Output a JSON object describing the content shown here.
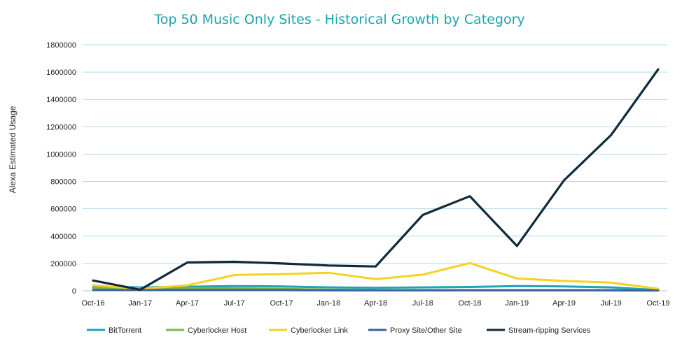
{
  "chart_data": {
    "type": "line",
    "title": "Top 50 Music Only Sites - Historical Growth by Category",
    "xlabel": "",
    "ylabel": "Alexa Estimated Usage",
    "ylim": [
      0,
      1800000
    ],
    "yticks": [
      0,
      200000,
      400000,
      600000,
      800000,
      1000000,
      1200000,
      1400000,
      1600000,
      1800000
    ],
    "grid": true,
    "legend_position": "bottom",
    "categories": [
      "Oct-16",
      "Jan-17",
      "Apr-17",
      "Jul-17",
      "Oct-17",
      "Jan-18",
      "Apr-18",
      "Jul-18",
      "Oct-18",
      "Jan-19",
      "Apr-19",
      "Jul-19",
      "Oct-19"
    ],
    "series": [
      {
        "name": "BitTorrent",
        "color": "#1fa3b5",
        "values": [
          30000,
          25000,
          30000,
          35000,
          32000,
          25000,
          22000,
          25000,
          28000,
          35000,
          32000,
          25000,
          5000
        ]
      },
      {
        "name": "Cyberlocker Host",
        "color": "#7ab648",
        "values": [
          20000,
          10000,
          20000,
          18000,
          15000,
          8000,
          5000,
          5000,
          5000,
          5000,
          5000,
          5000,
          3000
        ]
      },
      {
        "name": "Cyberlocker Link",
        "color": "#f5d21f",
        "values": [
          40000,
          15000,
          40000,
          115000,
          122000,
          132000,
          85000,
          118000,
          203000,
          90000,
          72000,
          60000,
          15000
        ]
      },
      {
        "name": "Proxy Site/Other Site",
        "color": "#3a5fa3",
        "values": [
          5000,
          5000,
          5000,
          5000,
          5000,
          3000,
          3000,
          3000,
          3000,
          3000,
          3000,
          3000,
          2000
        ]
      },
      {
        "name": "Stream-ripping Services",
        "color": "#0f2a3a",
        "values": [
          75000,
          8000,
          207000,
          212000,
          200000,
          185000,
          178000,
          555000,
          692000,
          328000,
          808000,
          1140000,
          1620000
        ]
      }
    ]
  }
}
